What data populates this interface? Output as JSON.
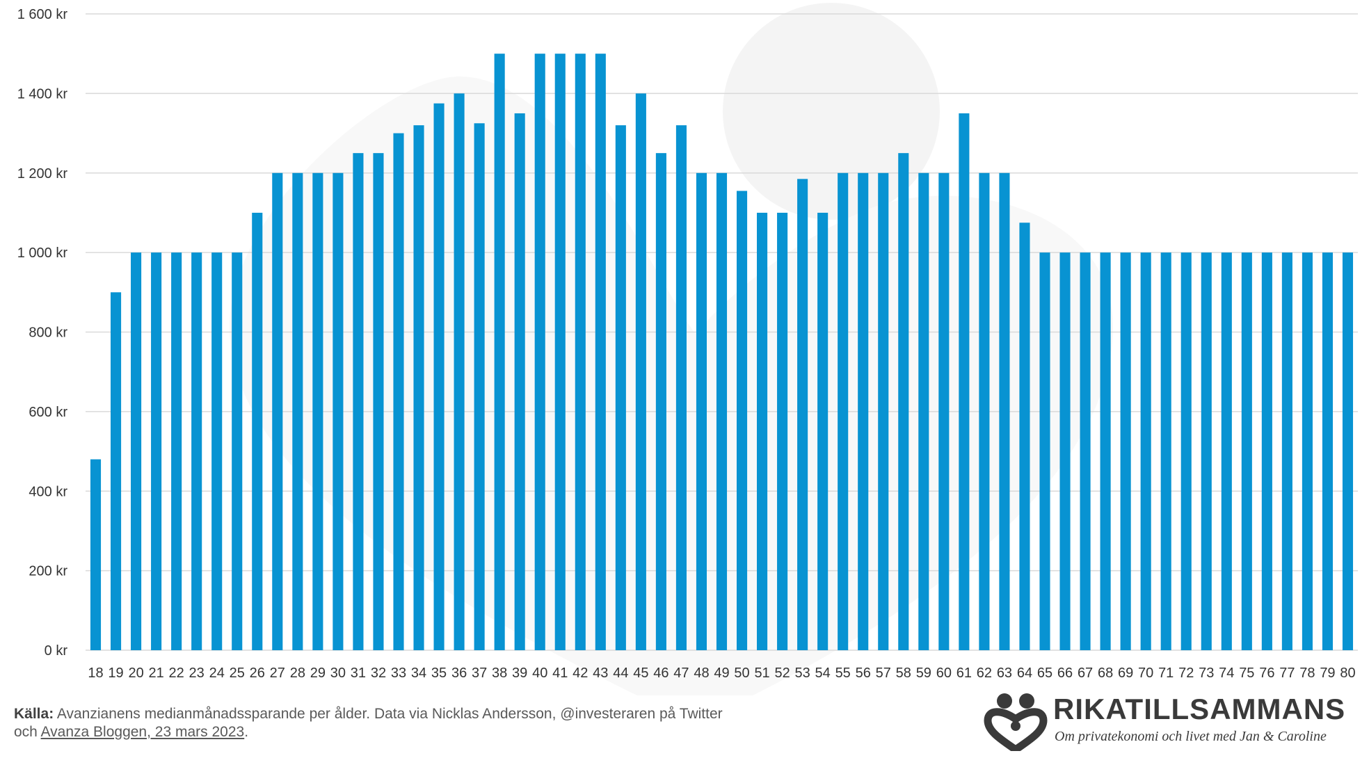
{
  "chart_data": {
    "type": "bar",
    "categories": [
      "18",
      "19",
      "20",
      "21",
      "22",
      "23",
      "24",
      "25",
      "26",
      "27",
      "28",
      "29",
      "30",
      "31",
      "32",
      "33",
      "34",
      "35",
      "36",
      "37",
      "38",
      "39",
      "40",
      "41",
      "42",
      "43",
      "44",
      "45",
      "46",
      "47",
      "48",
      "49",
      "50",
      "51",
      "52",
      "53",
      "54",
      "55",
      "56",
      "57",
      "58",
      "59",
      "60",
      "61",
      "62",
      "63",
      "64",
      "65",
      "66",
      "67",
      "68",
      "69",
      "70",
      "71",
      "72",
      "73",
      "74",
      "75",
      "76",
      "77",
      "78",
      "79",
      "80"
    ],
    "values": [
      480,
      900,
      1000,
      1000,
      1000,
      1000,
      1000,
      1000,
      1100,
      1200,
      1200,
      1200,
      1200,
      1250,
      1250,
      1300,
      1320,
      1375,
      1400,
      1325,
      1500,
      1350,
      1500,
      1500,
      1500,
      1500,
      1320,
      1400,
      1250,
      1320,
      1200,
      1200,
      1155,
      1100,
      1100,
      1185,
      1100,
      1200,
      1200,
      1200,
      1250,
      1200,
      1200,
      1350,
      1200,
      1200,
      1075,
      1000,
      1000,
      1000,
      1000,
      1000,
      1000,
      1000,
      1000,
      1000,
      1000,
      1000,
      1000,
      1000,
      1000,
      1000,
      1000
    ],
    "yticks": [
      "0 kr",
      "200 kr",
      "400 kr",
      "600 kr",
      "800 kr",
      "1 000 kr",
      "1 200 kr",
      "1 400 kr",
      "1 600 kr"
    ],
    "ylim": [
      0,
      1600
    ],
    "title": "",
    "xlabel": "",
    "ylabel": "",
    "grid": "horizontal",
    "bar_color": "#0893d2",
    "grid_color": "#d9d9d9"
  },
  "footer": {
    "source_label": "Källa:",
    "source_text": "Avanzianens medianmånadssparande per ålder. Data via Nicklas Andersson, @investeraren på Twitter",
    "line2_prefix": "och",
    "link_text": "Avanza Bloggen, 23 mars 2023",
    "line2_suffix": "."
  },
  "brand": {
    "name": "RIKATILLSAMMANS",
    "tagline": "Om privatekonomi och livet med Jan & Caroline",
    "logo_icon": "couple-heart-logo-icon"
  }
}
